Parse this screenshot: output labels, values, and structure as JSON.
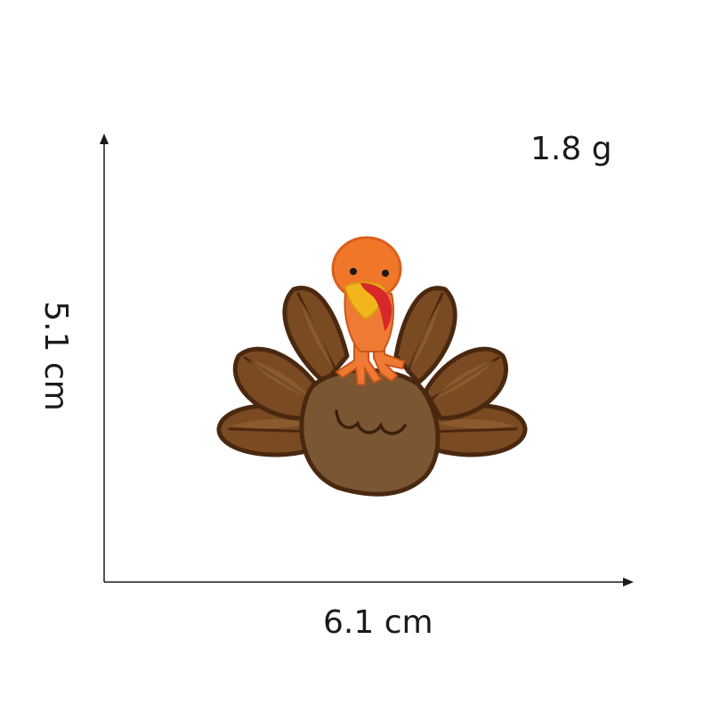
{
  "labels": {
    "weight": "1.8 g",
    "width": "6.1 cm",
    "height": "5.1 cm"
  },
  "colors": {
    "feather_dark": "#5a3316",
    "feather_mid": "#7a4a22",
    "feather_light": "#8f6033",
    "body": "#7b5633",
    "body_light": "#8d6840",
    "head": "#f0762a",
    "head_shade": "#d85f1c",
    "beak": "#f2b51c",
    "wattle": "#d6282a",
    "leg": "#ee7a34",
    "axis": "#1a1a1a"
  },
  "icons": {
    "subject": "turkey-embroidered-patch-icon"
  }
}
